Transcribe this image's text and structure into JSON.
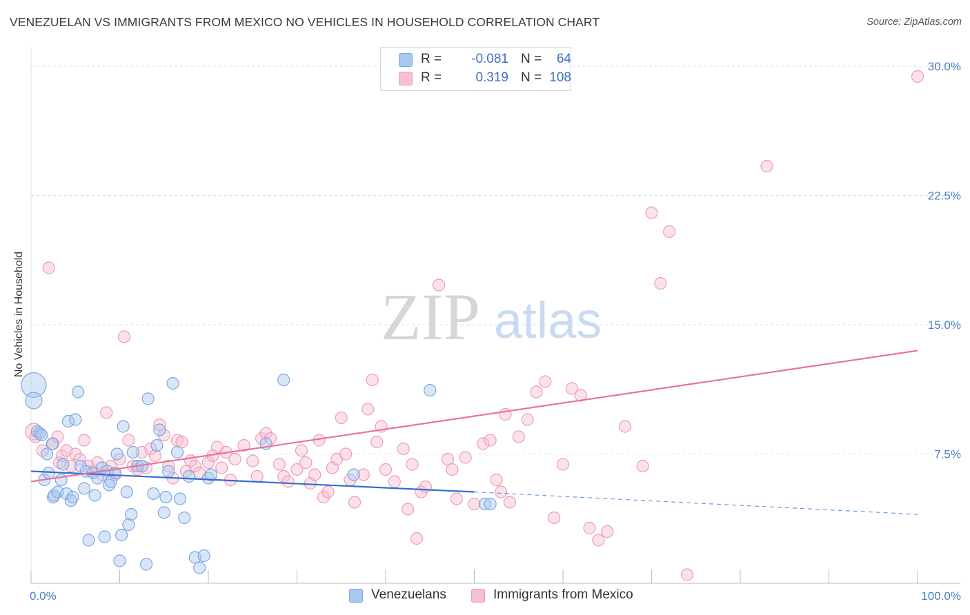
{
  "title": "VENEZUELAN VS IMMIGRANTS FROM MEXICO NO VEHICLES IN HOUSEHOLD CORRELATION CHART",
  "source": "Source: ZipAtlas.com",
  "watermark": {
    "zip": "ZIP",
    "atlas": "atlas"
  },
  "legend_top": {
    "venezuelans": {
      "r_label": "R =",
      "r_value": "-0.081",
      "n_label": "N =",
      "n_value": "64"
    },
    "mexico": {
      "r_label": "R =",
      "r_value": "0.319",
      "n_label": "N =",
      "n_value": "108"
    }
  },
  "legend_bottom": {
    "venezuelans": "Venezuelans",
    "mexico": "Immigrants from Mexico"
  },
  "colors": {
    "blue_fill": "#a9c8f0",
    "blue_stroke": "#7aa6e0",
    "blue_line": "#2f6fd0",
    "pink_fill": "#f7bfd1",
    "pink_stroke": "#ee9ab5",
    "pink_line": "#e8739a",
    "tick_text": "#4a7fc8",
    "grid": "#dddddd"
  },
  "chart_data": {
    "type": "scatter",
    "title": "VENEZUELAN VS IMMIGRANTS FROM MEXICO NO VEHICLES IN HOUSEHOLD CORRELATION CHART",
    "xlabel": "",
    "ylabel": "No Vehicles in Household",
    "xlim": [
      0,
      100
    ],
    "ylim": [
      0,
      30
    ],
    "x_tick_labels": [
      "0.0%",
      "100.0%"
    ],
    "y_ticks": [
      7.5,
      15.0,
      22.5,
      30.0
    ],
    "y_tick_labels": [
      "7.5%",
      "15.0%",
      "22.5%",
      "30.0%"
    ],
    "series": [
      {
        "name": "Venezuelans",
        "r": -0.081,
        "n": 64,
        "trend": {
          "x0": 0,
          "y0": 6.5,
          "x1": 50,
          "y1": 5.3,
          "dashed_to_x": 100,
          "dashed_to_y": 4.0
        },
        "points": [
          {
            "x": 0.3,
            "y": 11.5,
            "s": 3
          },
          {
            "x": 0.3,
            "y": 10.6,
            "s": 2
          },
          {
            "x": 0.7,
            "y": 8.8,
            "s": 1
          },
          {
            "x": 1.0,
            "y": 8.7,
            "s": 1
          },
          {
            "x": 1.2,
            "y": 8.6,
            "s": 1
          },
          {
            "x": 1.5,
            "y": 6.0,
            "s": 1
          },
          {
            "x": 1.8,
            "y": 7.5,
            "s": 1
          },
          {
            "x": 2.0,
            "y": 6.4,
            "s": 1
          },
          {
            "x": 2.4,
            "y": 8.1,
            "s": 1
          },
          {
            "x": 2.5,
            "y": 5.0,
            "s": 1
          },
          {
            "x": 2.6,
            "y": 5.1,
            "s": 1
          },
          {
            "x": 3.0,
            "y": 5.3,
            "s": 1
          },
          {
            "x": 3.4,
            "y": 6.0,
            "s": 1
          },
          {
            "x": 3.6,
            "y": 6.9,
            "s": 1
          },
          {
            "x": 4.0,
            "y": 5.2,
            "s": 1
          },
          {
            "x": 4.2,
            "y": 9.4,
            "s": 1
          },
          {
            "x": 4.5,
            "y": 4.8,
            "s": 1
          },
          {
            "x": 4.7,
            "y": 5.0,
            "s": 1
          },
          {
            "x": 5.0,
            "y": 9.5,
            "s": 1
          },
          {
            "x": 5.3,
            "y": 11.1,
            "s": 1
          },
          {
            "x": 5.6,
            "y": 6.8,
            "s": 1
          },
          {
            "x": 6.0,
            "y": 5.5,
            "s": 1
          },
          {
            "x": 6.2,
            "y": 6.5,
            "s": 1
          },
          {
            "x": 6.5,
            "y": 2.5,
            "s": 1
          },
          {
            "x": 7.0,
            "y": 6.4,
            "s": 1
          },
          {
            "x": 7.2,
            "y": 5.1,
            "s": 1
          },
          {
            "x": 7.5,
            "y": 6.1,
            "s": 1
          },
          {
            "x": 8.0,
            "y": 6.7,
            "s": 1
          },
          {
            "x": 8.3,
            "y": 2.7,
            "s": 1
          },
          {
            "x": 8.6,
            "y": 6.5,
            "s": 1
          },
          {
            "x": 8.8,
            "y": 5.7,
            "s": 1
          },
          {
            "x": 9.0,
            "y": 5.9,
            "s": 1
          },
          {
            "x": 9.5,
            "y": 6.4,
            "s": 1
          },
          {
            "x": 9.7,
            "y": 7.5,
            "s": 1
          },
          {
            "x": 10.0,
            "y": 1.3,
            "s": 1
          },
          {
            "x": 10.2,
            "y": 2.8,
            "s": 1
          },
          {
            "x": 10.4,
            "y": 9.1,
            "s": 1
          },
          {
            "x": 10.8,
            "y": 5.3,
            "s": 1
          },
          {
            "x": 11.0,
            "y": 3.4,
            "s": 1
          },
          {
            "x": 11.3,
            "y": 4.0,
            "s": 1
          },
          {
            "x": 11.5,
            "y": 7.6,
            "s": 1
          },
          {
            "x": 12.0,
            "y": 6.8,
            "s": 1
          },
          {
            "x": 12.5,
            "y": 6.8,
            "s": 1
          },
          {
            "x": 13.0,
            "y": 1.1,
            "s": 1
          },
          {
            "x": 13.2,
            "y": 10.7,
            "s": 1
          },
          {
            "x": 13.8,
            "y": 5.2,
            "s": 1
          },
          {
            "x": 14.5,
            "y": 8.9,
            "s": 1
          },
          {
            "x": 14.2,
            "y": 8.0,
            "s": 1
          },
          {
            "x": 15.0,
            "y": 4.1,
            "s": 1
          },
          {
            "x": 15.2,
            "y": 5.0,
            "s": 1
          },
          {
            "x": 15.5,
            "y": 6.5,
            "s": 1
          },
          {
            "x": 16.0,
            "y": 11.6,
            "s": 1
          },
          {
            "x": 16.5,
            "y": 7.6,
            "s": 1
          },
          {
            "x": 16.8,
            "y": 4.9,
            "s": 1
          },
          {
            "x": 17.3,
            "y": 3.8,
            "s": 1
          },
          {
            "x": 17.8,
            "y": 6.2,
            "s": 1
          },
          {
            "x": 18.5,
            "y": 1.5,
            "s": 1
          },
          {
            "x": 19.0,
            "y": 0.9,
            "s": 1
          },
          {
            "x": 19.5,
            "y": 1.6,
            "s": 1
          },
          {
            "x": 20.0,
            "y": 6.1,
            "s": 1
          },
          {
            "x": 20.3,
            "y": 6.3,
            "s": 1
          },
          {
            "x": 26.5,
            "y": 8.1,
            "s": 1
          },
          {
            "x": 28.5,
            "y": 11.8,
            "s": 1
          },
          {
            "x": 36.4,
            "y": 6.3,
            "s": 1
          },
          {
            "x": 45.0,
            "y": 11.2,
            "s": 1
          },
          {
            "x": 51.2,
            "y": 4.6,
            "s": 1
          },
          {
            "x": 51.8,
            "y": 4.6,
            "s": 1
          }
        ]
      },
      {
        "name": "Immigrants from Mexico",
        "r": 0.319,
        "n": 108,
        "trend": {
          "x0": 0,
          "y0": 5.9,
          "x1": 100,
          "y1": 13.5
        },
        "points": [
          {
            "x": 0.3,
            "y": 8.8,
            "s": 2
          },
          {
            "x": 0.5,
            "y": 8.5,
            "s": 1
          },
          {
            "x": 1.3,
            "y": 7.7,
            "s": 1
          },
          {
            "x": 2.0,
            "y": 18.3,
            "s": 1
          },
          {
            "x": 2.5,
            "y": 8.1,
            "s": 1
          },
          {
            "x": 3.0,
            "y": 8.5,
            "s": 1
          },
          {
            "x": 3.2,
            "y": 7.0,
            "s": 1
          },
          {
            "x": 3.5,
            "y": 7.4,
            "s": 1
          },
          {
            "x": 4.0,
            "y": 7.7,
            "s": 1
          },
          {
            "x": 4.5,
            "y": 6.8,
            "s": 1
          },
          {
            "x": 5.0,
            "y": 7.5,
            "s": 1
          },
          {
            "x": 5.5,
            "y": 7.2,
            "s": 1
          },
          {
            "x": 6.0,
            "y": 8.3,
            "s": 1
          },
          {
            "x": 6.5,
            "y": 6.8,
            "s": 1
          },
          {
            "x": 7.0,
            "y": 6.5,
            "s": 1
          },
          {
            "x": 7.5,
            "y": 7.0,
            "s": 1
          },
          {
            "x": 8.0,
            "y": 6.3,
            "s": 1
          },
          {
            "x": 8.5,
            "y": 9.9,
            "s": 1
          },
          {
            "x": 9.0,
            "y": 6.8,
            "s": 1
          },
          {
            "x": 9.5,
            "y": 6.3,
            "s": 1
          },
          {
            "x": 10.0,
            "y": 7.2,
            "s": 1
          },
          {
            "x": 10.5,
            "y": 14.3,
            "s": 1
          },
          {
            "x": 11.0,
            "y": 8.3,
            "s": 1
          },
          {
            "x": 11.5,
            "y": 6.8,
            "s": 1
          },
          {
            "x": 12.0,
            "y": 6.6,
            "s": 1
          },
          {
            "x": 12.5,
            "y": 7.6,
            "s": 1
          },
          {
            "x": 13.0,
            "y": 6.7,
            "s": 1
          },
          {
            "x": 13.5,
            "y": 7.8,
            "s": 1
          },
          {
            "x": 14.0,
            "y": 7.4,
            "s": 1
          },
          {
            "x": 14.5,
            "y": 9.2,
            "s": 1
          },
          {
            "x": 15.0,
            "y": 8.6,
            "s": 1
          },
          {
            "x": 15.5,
            "y": 6.8,
            "s": 1
          },
          {
            "x": 16.0,
            "y": 6.1,
            "s": 1
          },
          {
            "x": 16.5,
            "y": 8.3,
            "s": 1
          },
          {
            "x": 17.0,
            "y": 8.2,
            "s": 1
          },
          {
            "x": 17.5,
            "y": 6.5,
            "s": 1
          },
          {
            "x": 18.0,
            "y": 7.1,
            "s": 1
          },
          {
            "x": 18.5,
            "y": 6.8,
            "s": 1
          },
          {
            "x": 19.0,
            "y": 6.4,
            "s": 1
          },
          {
            "x": 20.0,
            "y": 7.0,
            "s": 1
          },
          {
            "x": 20.5,
            "y": 7.4,
            "s": 1
          },
          {
            "x": 21.0,
            "y": 7.9,
            "s": 1
          },
          {
            "x": 21.5,
            "y": 6.7,
            "s": 1
          },
          {
            "x": 22.0,
            "y": 7.6,
            "s": 1
          },
          {
            "x": 22.5,
            "y": 6.0,
            "s": 1
          },
          {
            "x": 23.0,
            "y": 7.2,
            "s": 1
          },
          {
            "x": 24.0,
            "y": 8.0,
            "s": 1
          },
          {
            "x": 25.0,
            "y": 7.1,
            "s": 1
          },
          {
            "x": 25.5,
            "y": 6.2,
            "s": 1
          },
          {
            "x": 26.0,
            "y": 8.4,
            "s": 1
          },
          {
            "x": 26.5,
            "y": 8.7,
            "s": 1
          },
          {
            "x": 27.0,
            "y": 8.4,
            "s": 1
          },
          {
            "x": 28.0,
            "y": 6.9,
            "s": 1
          },
          {
            "x": 28.5,
            "y": 6.2,
            "s": 1
          },
          {
            "x": 29.0,
            "y": 5.9,
            "s": 1
          },
          {
            "x": 30.0,
            "y": 6.6,
            "s": 1
          },
          {
            "x": 30.5,
            "y": 7.7,
            "s": 1
          },
          {
            "x": 31.0,
            "y": 7.0,
            "s": 1
          },
          {
            "x": 31.5,
            "y": 5.8,
            "s": 1
          },
          {
            "x": 32.0,
            "y": 6.3,
            "s": 1
          },
          {
            "x": 32.5,
            "y": 8.3,
            "s": 1
          },
          {
            "x": 33.0,
            "y": 5.0,
            "s": 1
          },
          {
            "x": 33.5,
            "y": 5.3,
            "s": 1
          },
          {
            "x": 34.0,
            "y": 6.7,
            "s": 1
          },
          {
            "x": 34.5,
            "y": 7.2,
            "s": 1
          },
          {
            "x": 35.0,
            "y": 9.6,
            "s": 1
          },
          {
            "x": 35.5,
            "y": 7.5,
            "s": 1
          },
          {
            "x": 36.0,
            "y": 6.0,
            "s": 1
          },
          {
            "x": 36.5,
            "y": 4.7,
            "s": 1
          },
          {
            "x": 37.5,
            "y": 6.3,
            "s": 1
          },
          {
            "x": 38.0,
            "y": 10.1,
            "s": 1
          },
          {
            "x": 38.5,
            "y": 11.8,
            "s": 1
          },
          {
            "x": 39.0,
            "y": 8.2,
            "s": 1
          },
          {
            "x": 39.5,
            "y": 9.1,
            "s": 1
          },
          {
            "x": 40.0,
            "y": 6.6,
            "s": 1
          },
          {
            "x": 41.0,
            "y": 5.9,
            "s": 1
          },
          {
            "x": 42.0,
            "y": 7.8,
            "s": 1
          },
          {
            "x": 42.5,
            "y": 4.3,
            "s": 1
          },
          {
            "x": 43.0,
            "y": 6.9,
            "s": 1
          },
          {
            "x": 43.5,
            "y": 2.6,
            "s": 1
          },
          {
            "x": 44.0,
            "y": 5.3,
            "s": 1
          },
          {
            "x": 44.5,
            "y": 5.6,
            "s": 1
          },
          {
            "x": 46.0,
            "y": 17.3,
            "s": 1
          },
          {
            "x": 47.0,
            "y": 7.2,
            "s": 1
          },
          {
            "x": 47.5,
            "y": 6.6,
            "s": 1
          },
          {
            "x": 48.0,
            "y": 4.9,
            "s": 1
          },
          {
            "x": 49.0,
            "y": 7.3,
            "s": 1
          },
          {
            "x": 50.0,
            "y": 4.6,
            "s": 1
          },
          {
            "x": 51.0,
            "y": 8.1,
            "s": 1
          },
          {
            "x": 51.8,
            "y": 8.3,
            "s": 1
          },
          {
            "x": 52.5,
            "y": 6.0,
            "s": 1
          },
          {
            "x": 53.0,
            "y": 5.3,
            "s": 1
          },
          {
            "x": 53.5,
            "y": 9.8,
            "s": 1
          },
          {
            "x": 54.0,
            "y": 4.7,
            "s": 1
          },
          {
            "x": 55.0,
            "y": 8.5,
            "s": 1
          },
          {
            "x": 56.0,
            "y": 9.5,
            "s": 1
          },
          {
            "x": 57.0,
            "y": 11.1,
            "s": 1
          },
          {
            "x": 58.0,
            "y": 11.7,
            "s": 1
          },
          {
            "x": 59.0,
            "y": 3.8,
            "s": 1
          },
          {
            "x": 60.0,
            "y": 6.9,
            "s": 1
          },
          {
            "x": 61.0,
            "y": 11.3,
            "s": 1
          },
          {
            "x": 62.0,
            "y": 10.9,
            "s": 1
          },
          {
            "x": 63.0,
            "y": 3.2,
            "s": 1
          },
          {
            "x": 64.0,
            "y": 2.5,
            "s": 1
          },
          {
            "x": 65.0,
            "y": 3.0,
            "s": 1
          },
          {
            "x": 67.0,
            "y": 9.1,
            "s": 1
          },
          {
            "x": 69.0,
            "y": 6.8,
            "s": 1
          },
          {
            "x": 70.0,
            "y": 21.5,
            "s": 1
          },
          {
            "x": 71.0,
            "y": 17.4,
            "s": 1
          },
          {
            "x": 72.0,
            "y": 20.4,
            "s": 1
          },
          {
            "x": 74.0,
            "y": 0.5,
            "s": 1
          },
          {
            "x": 83.0,
            "y": 24.2,
            "s": 1
          },
          {
            "x": 100.0,
            "y": 29.4,
            "s": 1
          }
        ]
      }
    ]
  }
}
